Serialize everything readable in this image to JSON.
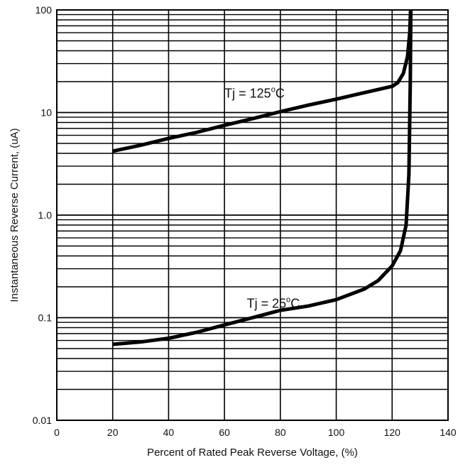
{
  "chart_data": {
    "type": "line",
    "title": "",
    "xlabel": "Percent of Rated Peak Reverse Voltage, (%)",
    "ylabel": "Instantaneous Reverse Current, (uA)",
    "xlim": [
      0,
      140
    ],
    "ylim": [
      0.01,
      100
    ],
    "yscale": "log",
    "grid": true,
    "x_ticks": [
      0,
      20,
      40,
      60,
      80,
      100,
      120,
      140
    ],
    "x_tick_labels": [
      "0",
      "20",
      "40",
      "60",
      "80",
      "100",
      "120",
      "140"
    ],
    "y_ticks": [
      0.01,
      0.1,
      1.0,
      10,
      100
    ],
    "y_tick_labels": [
      "0.01",
      "0.1",
      "1.0",
      "10",
      "100"
    ],
    "series": [
      {
        "name": "",
        "annotation": {
          "prefix": "Tj = 125",
          "sup": "o",
          "suffix": "C",
          "x": 60,
          "y": 14
        },
        "x": [
          20,
          30,
          40,
          50,
          60,
          70,
          80,
          90,
          100,
          110,
          120,
          122,
          124,
          125.5,
          126.3,
          126.6
        ],
        "y": [
          4.2,
          4.8,
          5.6,
          6.4,
          7.5,
          8.7,
          10.2,
          11.8,
          13.5,
          15.6,
          18.0,
          19.5,
          24,
          35,
          60,
          100
        ]
      },
      {
        "name": "",
        "annotation": {
          "prefix": "Tj = 25",
          "sup": "o",
          "suffix": "C",
          "x": 68,
          "y": 0.125
        },
        "x": [
          20,
          30,
          40,
          50,
          60,
          70,
          80,
          90,
          100,
          110,
          115,
          120,
          123,
          125,
          126,
          126.5,
          126.7
        ],
        "y": [
          0.055,
          0.058,
          0.063,
          0.072,
          0.085,
          0.1,
          0.118,
          0.13,
          0.15,
          0.19,
          0.23,
          0.32,
          0.45,
          0.8,
          2.5,
          20,
          100
        ]
      }
    ],
    "line_color": "#000000"
  }
}
